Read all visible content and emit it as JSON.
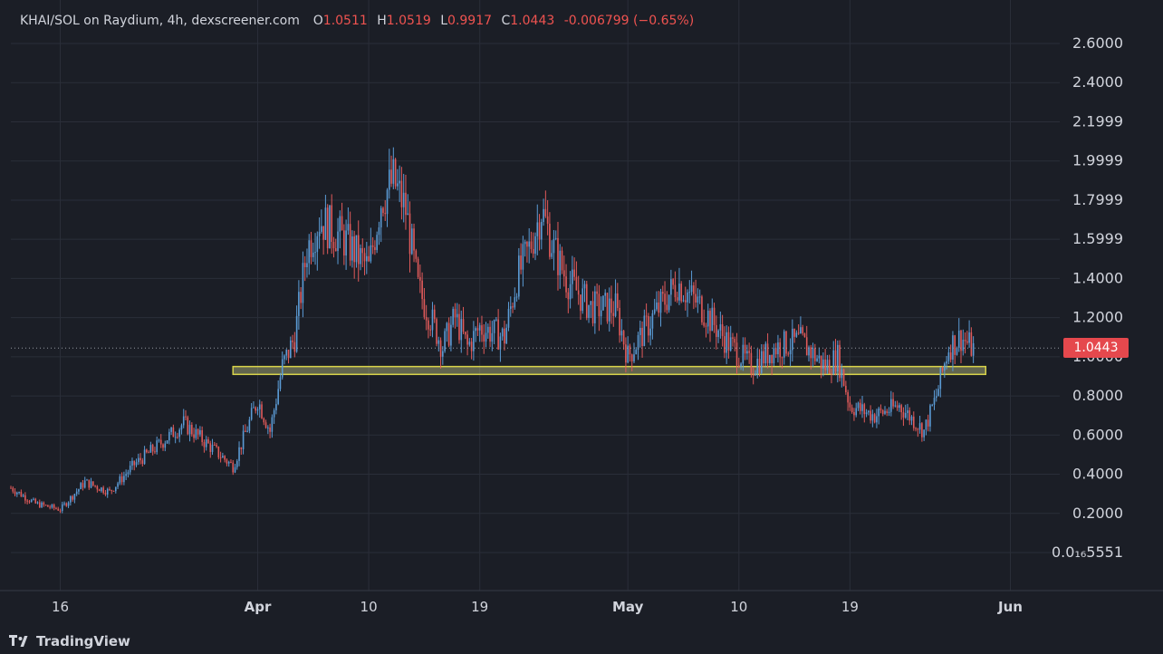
{
  "legend": {
    "symbol": "KHAI/SOL on Raydium, 4h, dexscreener.com",
    "open_label": "O",
    "open": "1.0511",
    "high_label": "H",
    "high": "1.0519",
    "low_label": "L",
    "low": "0.9917",
    "close_label": "C",
    "close": "1.0443",
    "change": "-0.006799 (−0.65%)"
  },
  "price_tag": "1.0443",
  "brand": "TradingView",
  "colors": {
    "background": "#1b1e26",
    "grid": "#2a2e39",
    "up": "#5b9bd5",
    "down": "#e05a5a",
    "zone_fill": "#e8eb9a",
    "zone_stroke": "#d8d34a",
    "price_tag": "#e5484d"
  },
  "chart_data": {
    "type": "candlestick",
    "interval": "4h",
    "y_tick_labels": [
      "2.6000",
      "2.4000",
      "2.1999",
      "1.9999",
      "1.7999",
      "1.5999",
      "1.4000",
      "1.2000",
      "1.0000",
      "0.8000",
      "0.6000",
      "0.4000",
      "0.2000",
      "0.0₁₆5551"
    ],
    "y_tick_values": [
      2.6,
      2.4,
      2.1999,
      1.9999,
      1.7999,
      1.5999,
      1.4,
      1.2,
      1.0,
      0.8,
      0.6,
      0.4,
      0.2,
      0.0
    ],
    "ylim": [
      0.0,
      2.6
    ],
    "x_tick_labels": [
      "16",
      "Apr",
      "10",
      "19",
      "May",
      "10",
      "19",
      "Jun"
    ],
    "x_tick_dates": [
      "2024-03-16",
      "2024-04-01",
      "2024-04-10",
      "2024-04-19",
      "2024-05-01",
      "2024-05-10",
      "2024-05-19",
      "2024-06-01"
    ],
    "xlim": [
      "2024-03-12",
      "2024-06-05"
    ],
    "last_price": 1.0443,
    "support_zone": {
      "low": 0.91,
      "high": 0.95,
      "from": "2024-03-30",
      "to": "2024-05-30"
    },
    "close_path": [
      [
        "2024-03-12",
        0.33
      ],
      [
        "2024-03-14",
        0.25
      ],
      [
        "2024-03-16",
        0.22
      ],
      [
        "2024-03-18",
        0.36
      ],
      [
        "2024-03-20",
        0.31
      ],
      [
        "2024-03-22",
        0.45
      ],
      [
        "2024-03-24",
        0.55
      ],
      [
        "2024-03-26",
        0.66
      ],
      [
        "2024-03-28",
        0.55
      ],
      [
        "2024-03-30",
        0.44
      ],
      [
        "2024-04-01",
        0.78
      ],
      [
        "2024-04-02",
        0.62
      ],
      [
        "2024-04-03",
        0.95
      ],
      [
        "2024-04-04",
        1.1
      ],
      [
        "2024-04-05",
        1.55
      ],
      [
        "2024-04-06",
        1.7
      ],
      [
        "2024-04-08",
        1.6
      ],
      [
        "2024-04-10",
        1.45
      ],
      [
        "2024-04-11",
        1.8
      ],
      [
        "2024-04-12",
        1.9
      ],
      [
        "2024-04-13",
        1.75
      ],
      [
        "2024-04-14",
        1.35
      ],
      [
        "2024-04-16",
        1.05
      ],
      [
        "2024-04-17",
        1.2
      ],
      [
        "2024-04-18",
        1.05
      ],
      [
        "2024-04-19",
        1.15
      ],
      [
        "2024-04-21",
        1.1
      ],
      [
        "2024-04-22",
        1.4
      ],
      [
        "2024-04-23",
        1.55
      ],
      [
        "2024-04-24",
        1.75
      ],
      [
        "2024-04-25",
        1.55
      ],
      [
        "2024-04-26",
        1.4
      ],
      [
        "2024-04-28",
        1.25
      ],
      [
        "2024-04-30",
        1.25
      ],
      [
        "2024-05-01",
        1.0
      ],
      [
        "2024-05-03",
        1.2
      ],
      [
        "2024-05-05",
        1.38
      ],
      [
        "2024-05-07",
        1.25
      ],
      [
        "2024-05-09",
        1.08
      ],
      [
        "2024-05-11",
        0.95
      ],
      [
        "2024-05-13",
        1.05
      ],
      [
        "2024-05-15",
        1.08
      ],
      [
        "2024-05-17",
        0.95
      ],
      [
        "2024-05-18",
        1.0
      ],
      [
        "2024-05-19",
        0.75
      ],
      [
        "2024-05-21",
        0.7
      ],
      [
        "2024-05-23",
        0.75
      ],
      [
        "2024-05-25",
        0.62
      ],
      [
        "2024-05-26",
        0.8
      ],
      [
        "2024-05-27",
        1.05
      ],
      [
        "2024-05-28",
        1.1
      ],
      [
        "2024-05-29",
        1.04
      ]
    ]
  }
}
